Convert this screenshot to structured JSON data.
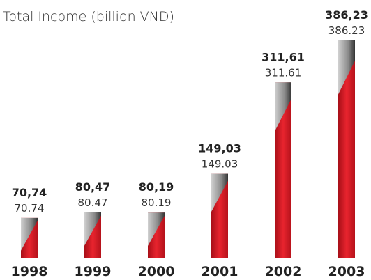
{
  "chart_data": {
    "type": "bar",
    "title": "Total Income (billion VND)",
    "categories": [
      "1998",
      "1999",
      "2000",
      "2001",
      "2002",
      "2003"
    ],
    "values": [
      70.74,
      80.47,
      80.19,
      149.03,
      311.61,
      386.23
    ],
    "value_labels": [
      "70,74",
      "80,47",
      "80,19",
      "149,03",
      "311,61",
      "386,23"
    ],
    "color": "#e0202a"
  }
}
